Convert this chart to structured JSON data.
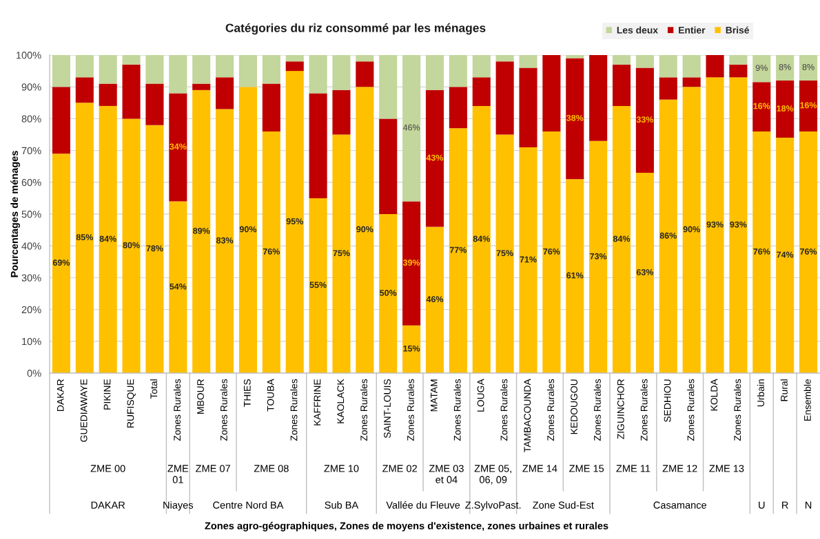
{
  "chart_data": {
    "type": "bar",
    "title": "Catégories du riz consommé par les ménages",
    "ylabel": "Pourcentages de ménages",
    "categories": [
      "DAKAR",
      "GUEDIAWAYE",
      "PIKINE",
      "RUFISQUE",
      "Total",
      "Zones Rurales",
      "MBOUR",
      "Zones Rurales",
      "THIES",
      "TOUBA",
      "Zones Rurales",
      "KAFFRINE",
      "KAOLACK",
      "Zones Rurales",
      "SAINT-LOUIS",
      "Zones Rurales",
      "MATAM",
      "Zones Rurales",
      "LOUGA",
      "Zones Rurales",
      "TAMBACOUNDA",
      "Zones Rurales",
      "KEDOUGOU",
      "Zones Rurales",
      "ZIGUINCHOR",
      "Zones Rurales",
      "SEDHIOU",
      "Zones Rurales",
      "KOLDA",
      "Zones Rurales",
      "Urbain",
      "Rural",
      "Ensemble"
    ],
    "stacked": true,
    "series": [
      {
        "name": "Brisé",
        "color": "#ffc000",
        "values": [
          69,
          85,
          84,
          80,
          78,
          54,
          89,
          83,
          90,
          76,
          95,
          55,
          75,
          90,
          50,
          15,
          46,
          77,
          84,
          75,
          71,
          76,
          61,
          73,
          84,
          63,
          86,
          90,
          93,
          93,
          76,
          74,
          76
        ],
        "value_labels": [
          "69%",
          "85%",
          "84%",
          "80%",
          "78%",
          "54%",
          "89%",
          "83%",
          "90%",
          "76%",
          "95%",
          "55%",
          "75%",
          "90%",
          "50%",
          "15%",
          "46%",
          "77%",
          "84%",
          "75%",
          "71%",
          "76%",
          "61%",
          "73%",
          "84%",
          "63%",
          "86%",
          "90%",
          "93%",
          "93%",
          "76%",
          "74%",
          "76%"
        ]
      },
      {
        "name": "Entier",
        "color": "#c00000",
        "values": [
          21,
          8,
          7,
          17,
          13,
          34,
          2,
          10,
          0,
          15,
          3,
          33,
          14,
          8,
          30,
          39,
          43,
          13,
          9,
          23,
          25,
          24,
          38,
          27,
          13,
          33,
          7,
          3,
          7,
          4,
          15.5,
          18,
          16
        ],
        "value_labels": [
          null,
          null,
          null,
          null,
          null,
          "34%",
          null,
          null,
          null,
          null,
          null,
          null,
          null,
          null,
          null,
          "39%",
          "43%",
          null,
          null,
          null,
          null,
          null,
          "38%",
          null,
          null,
          "33%",
          null,
          null,
          null,
          null,
          "16%",
          "18%",
          "16%"
        ]
      },
      {
        "name": "Les deux",
        "color": "#c3d69b",
        "values": [
          10,
          7,
          9,
          3,
          9,
          12,
          9,
          7,
          10,
          9,
          2,
          12,
          11,
          2,
          20,
          46,
          11,
          10,
          7,
          2,
          4,
          0,
          1,
          0,
          3,
          4,
          7,
          7,
          0,
          3,
          8.5,
          8,
          8
        ],
        "value_labels": [
          null,
          null,
          null,
          null,
          null,
          null,
          null,
          null,
          null,
          null,
          null,
          null,
          null,
          null,
          null,
          "46%",
          null,
          null,
          null,
          null,
          null,
          null,
          null,
          null,
          null,
          null,
          null,
          null,
          null,
          null,
          "9%",
          "8%",
          "8%"
        ]
      }
    ],
    "ylim": [
      0,
      100
    ],
    "yticks": [
      {
        "value": 0,
        "label": "0%"
      },
      {
        "value": 10,
        "label": "10%"
      },
      {
        "value": 20,
        "label": "20%"
      },
      {
        "value": 30,
        "label": "30%"
      },
      {
        "value": 40,
        "label": "40%"
      },
      {
        "value": 50,
        "label": "50%"
      },
      {
        "value": 60,
        "label": "60%"
      },
      {
        "value": 70,
        "label": "70%"
      },
      {
        "value": 80,
        "label": "80%"
      },
      {
        "value": 90,
        "label": "90%"
      },
      {
        "value": 100,
        "label": "100%"
      }
    ],
    "grid": "y",
    "legend": "top right",
    "annotations": [
      "ZME 00",
      "ZME 01",
      "ZME 07",
      "ZME 08",
      "ZME 10",
      "ZME 02",
      "ZME 03 et 04",
      "ZME 05, 06, 09",
      "ZME 14",
      "ZME 15",
      "ZME 11",
      "ZME 12",
      "ZME 13",
      "DAKAR",
      "Niayes",
      "Centre Nord BA",
      "Sub BA",
      "Vallée du Fleuve",
      "Z.SylvoPast.",
      "Zone Sud-Est",
      "Casamance",
      "U",
      "R",
      "N",
      "Zones agro-géographiques, Zones de moyens d'existence, zones urbaines et rurales"
    ]
  }
}
